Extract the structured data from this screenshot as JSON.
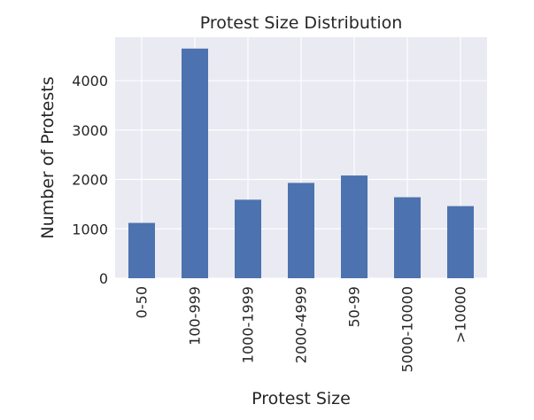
{
  "chart_data": {
    "type": "bar",
    "title": "Protest Size Distribution",
    "xlabel": "Protest Size",
    "ylabel": "Number of Protests",
    "categories": [
      "0-50",
      "100-999",
      "1000-1999",
      "2000-4999",
      "50-99",
      "5000-10000",
      ">10000"
    ],
    "values": [
      1120,
      4650,
      1590,
      1930,
      2080,
      1640,
      1460
    ],
    "ylim": [
      0,
      4880
    ],
    "yticks": [
      0,
      1000,
      2000,
      3000,
      4000
    ],
    "grid": true,
    "bar_color": "#4c72b0",
    "background_color": "#eaeaf2",
    "grid_color": "#ffffff"
  }
}
